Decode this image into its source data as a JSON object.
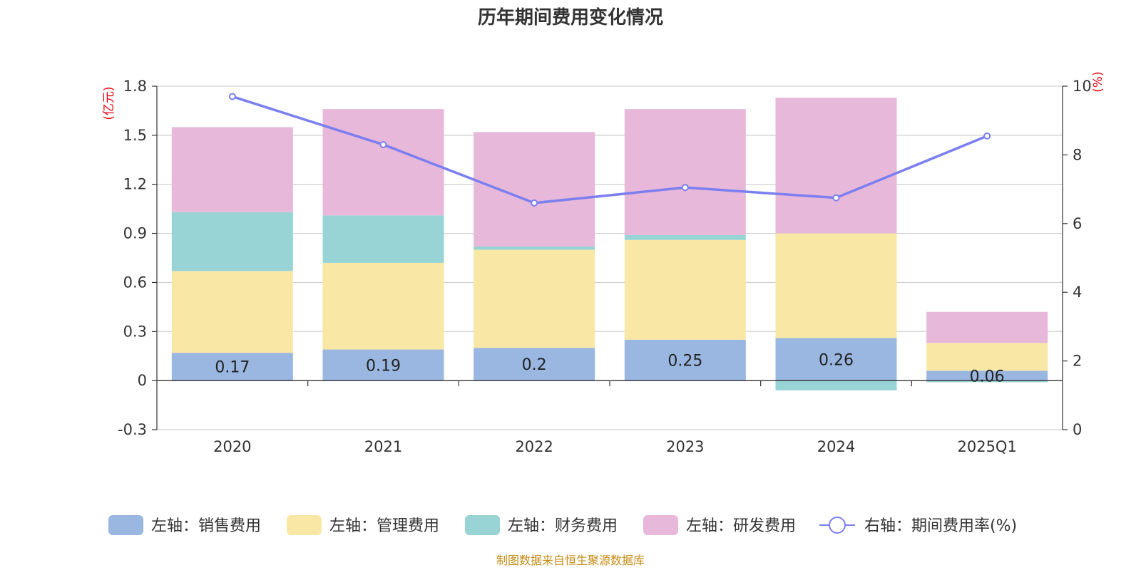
{
  "chart_data": {
    "type": "bar",
    "title": "历年期间费用变化情况",
    "categories": [
      "2020",
      "2021",
      "2022",
      "2023",
      "2024",
      "2025Q1"
    ],
    "y_left": {
      "unit": "(亿元)",
      "ylim": [
        -0.3,
        1.8
      ],
      "ticks": [
        "-0.3",
        "0",
        "0.3",
        "0.6",
        "0.9",
        "1.2",
        "1.5",
        "1.8"
      ]
    },
    "y_right": {
      "unit": "(%)",
      "ylim": [
        0,
        10
      ],
      "ticks": [
        "0",
        "2",
        "4",
        "6",
        "8",
        "10"
      ]
    },
    "series": [
      {
        "name": "左轴：销售费用",
        "color": "#9ab7e1",
        "values": [
          0.17,
          0.19,
          0.2,
          0.25,
          0.26,
          0.06
        ],
        "labels": [
          "0.17",
          "0.19",
          "0.2",
          "0.25",
          "0.26",
          "0.06"
        ]
      },
      {
        "name": "左轴：管理费用",
        "color": "#f9e7a6",
        "values": [
          0.5,
          0.53,
          0.6,
          0.61,
          0.64,
          0.17
        ]
      },
      {
        "name": "左轴：财务费用",
        "color": "#98d4d5",
        "values": [
          0.36,
          0.29,
          0.02,
          0.03,
          -0.06,
          -0.01
        ]
      },
      {
        "name": "左轴：研发费用",
        "color": "#e8b8da",
        "values": [
          0.52,
          0.65,
          0.7,
          0.77,
          0.83,
          0.19
        ]
      }
    ],
    "line": {
      "name": "右轴：期间费用率(%)",
      "color": "#7b7ff0",
      "values": [
        9.7,
        8.3,
        6.6,
        7.05,
        6.75,
        8.55
      ]
    },
    "grid": true,
    "legend": "bottom"
  },
  "source_note": "制图数据来自恒生聚源数据库"
}
